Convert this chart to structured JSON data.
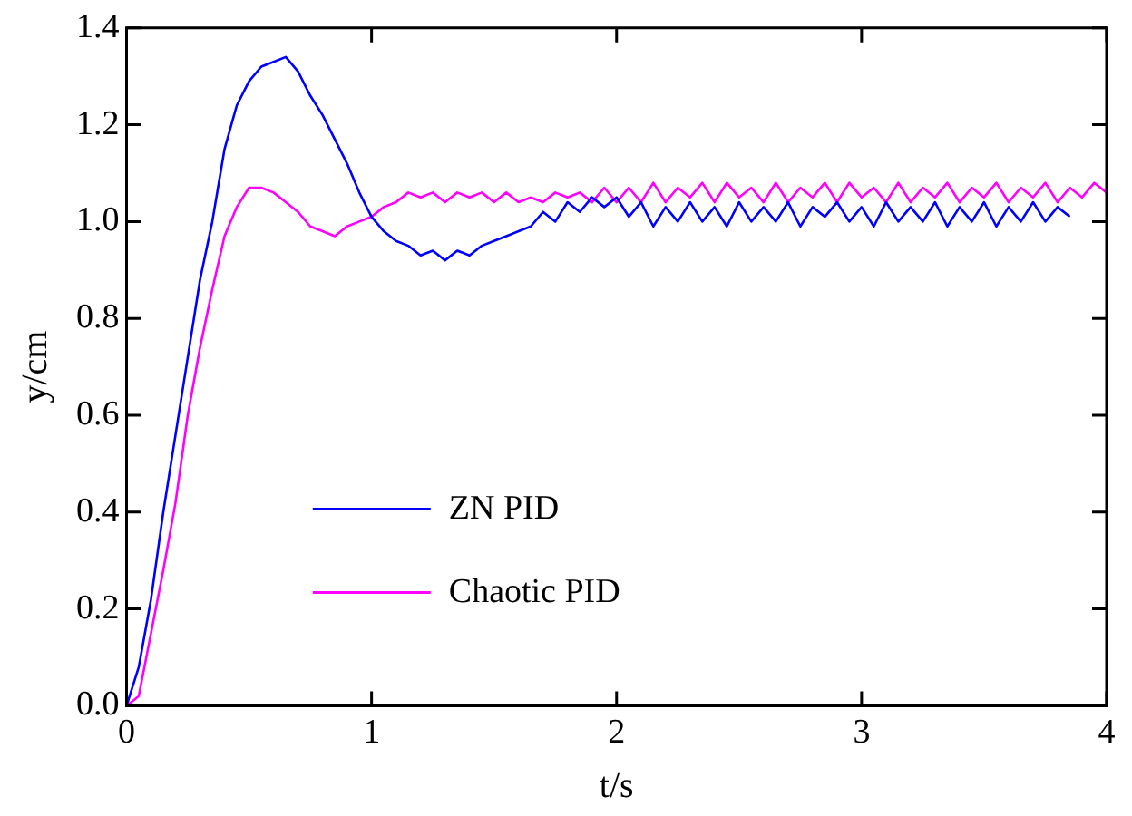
{
  "chart_data": {
    "type": "line",
    "xlabel": "t/s",
    "ylabel": "y/cm",
    "xlim": [
      0,
      4
    ],
    "xticks": [
      0,
      1,
      2,
      3,
      4
    ],
    "ylim": [
      0,
      1.4
    ],
    "yticks": [
      {
        "value": 0,
        "label": "0.0"
      },
      {
        "value": 0.2,
        "label": "0.2"
      },
      {
        "value": 0.4,
        "label": "0.4"
      },
      {
        "value": 0.6,
        "label": "0.6"
      },
      {
        "value": 0.8,
        "label": "0.8"
      },
      {
        "value": 1,
        "label": "1.0"
      },
      {
        "value": 1.2,
        "label": "1.2"
      },
      {
        "value": 1.4,
        "label": "1.4"
      }
    ],
    "grid": false,
    "legend": "bottom left",
    "marker": "none",
    "line_style": "solid",
    "series": [
      {
        "name": "ZN PID",
        "color": "#0000ff",
        "x": [
          0,
          0.05,
          0.1,
          0.15,
          0.2,
          0.25,
          0.3,
          0.35,
          0.4,
          0.45,
          0.5,
          0.55,
          0.6,
          0.65,
          0.7,
          0.75,
          0.8,
          0.85,
          0.9,
          0.95,
          1,
          1.05,
          1.1,
          1.15,
          1.2,
          1.25,
          1.3,
          1.35,
          1.4,
          1.45,
          1.5,
          1.55,
          1.6,
          1.65,
          1.7,
          1.75,
          1.8,
          1.85,
          1.9,
          1.95,
          2,
          2.05,
          2.1,
          2.15,
          2.2,
          2.25,
          2.3,
          2.35,
          2.4,
          2.45,
          2.5,
          2.55,
          2.6,
          2.65,
          2.7,
          2.75,
          2.8,
          2.85,
          2.9,
          2.95,
          3,
          3.05,
          3.1,
          3.15,
          3.2,
          3.25,
          3.3,
          3.35,
          3.4,
          3.45,
          3.5,
          3.55,
          3.6,
          3.65,
          3.7,
          3.75,
          3.8,
          3.85
        ],
        "values": [
          0,
          0.08,
          0.22,
          0.4,
          0.56,
          0.72,
          0.88,
          1.0,
          1.15,
          1.24,
          1.29,
          1.32,
          1.33,
          1.34,
          1.31,
          1.26,
          1.22,
          1.17,
          1.12,
          1.06,
          1.01,
          0.98,
          0.96,
          0.95,
          0.93,
          0.94,
          0.92,
          0.94,
          0.93,
          0.95,
          0.96,
          0.97,
          0.98,
          0.99,
          1.02,
          1.0,
          1.04,
          1.02,
          1.05,
          1.03,
          1.05,
          1.01,
          1.04,
          0.99,
          1.03,
          1.0,
          1.04,
          1.0,
          1.03,
          0.99,
          1.04,
          1.0,
          1.03,
          1.0,
          1.04,
          0.99,
          1.03,
          1.01,
          1.04,
          1.0,
          1.03,
          0.99,
          1.04,
          1.0,
          1.03,
          1.0,
          1.04,
          0.99,
          1.03,
          1.0,
          1.04,
          0.99,
          1.03,
          1.0,
          1.04,
          1.0,
          1.03,
          1.01
        ]
      },
      {
        "name": "Chaotic PID",
        "color": "#ff00ff",
        "x": [
          0,
          0.05,
          0.1,
          0.15,
          0.2,
          0.25,
          0.3,
          0.35,
          0.4,
          0.45,
          0.5,
          0.55,
          0.6,
          0.65,
          0.7,
          0.75,
          0.8,
          0.85,
          0.9,
          0.95,
          1,
          1.05,
          1.1,
          1.15,
          1.2,
          1.25,
          1.3,
          1.35,
          1.4,
          1.45,
          1.5,
          1.55,
          1.6,
          1.65,
          1.7,
          1.75,
          1.8,
          1.85,
          1.9,
          1.95,
          2,
          2.05,
          2.1,
          2.15,
          2.2,
          2.25,
          2.3,
          2.35,
          2.4,
          2.45,
          2.5,
          2.55,
          2.6,
          2.65,
          2.7,
          2.75,
          2.8,
          2.85,
          2.9,
          2.95,
          3,
          3.05,
          3.1,
          3.15,
          3.2,
          3.25,
          3.3,
          3.35,
          3.4,
          3.45,
          3.5,
          3.55,
          3.6,
          3.65,
          3.7,
          3.75,
          3.8,
          3.85,
          3.9,
          3.95,
          4
        ],
        "values": [
          0,
          0.02,
          0.15,
          0.28,
          0.42,
          0.6,
          0.74,
          0.86,
          0.97,
          1.03,
          1.07,
          1.07,
          1.06,
          1.04,
          1.02,
          0.99,
          0.98,
          0.97,
          0.99,
          1.0,
          1.01,
          1.03,
          1.04,
          1.06,
          1.05,
          1.06,
          1.04,
          1.06,
          1.05,
          1.06,
          1.04,
          1.06,
          1.04,
          1.05,
          1.04,
          1.06,
          1.05,
          1.06,
          1.04,
          1.07,
          1.04,
          1.07,
          1.04,
          1.08,
          1.04,
          1.07,
          1.05,
          1.08,
          1.04,
          1.08,
          1.05,
          1.07,
          1.04,
          1.08,
          1.04,
          1.07,
          1.05,
          1.08,
          1.04,
          1.08,
          1.05,
          1.07,
          1.04,
          1.08,
          1.04,
          1.07,
          1.05,
          1.08,
          1.04,
          1.07,
          1.05,
          1.08,
          1.04,
          1.07,
          1.05,
          1.08,
          1.04,
          1.07,
          1.05,
          1.08,
          1.06
        ]
      }
    ]
  }
}
